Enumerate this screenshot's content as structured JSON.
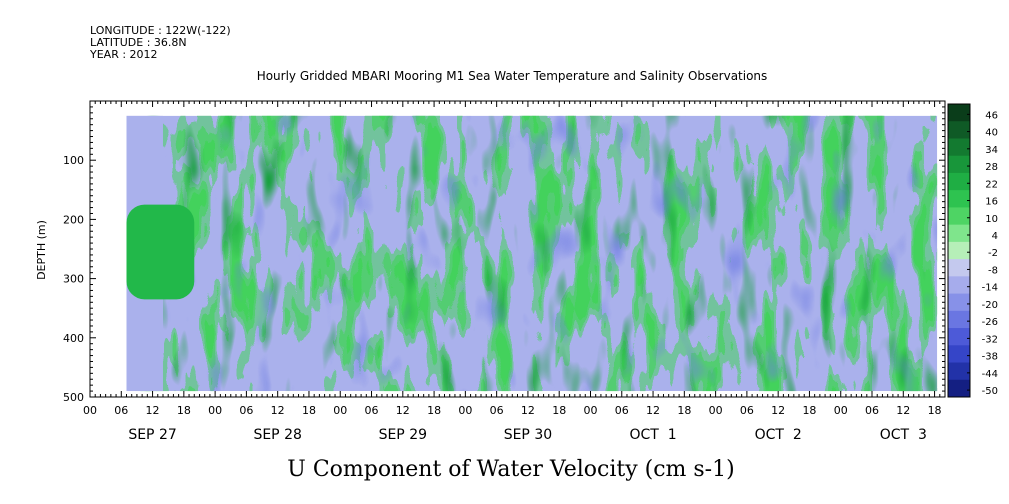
{
  "header": {
    "longitude": "LONGITUDE : 122W(-122)",
    "latitude": "LATITUDE : 36.8N",
    "year": "YEAR : 2012"
  },
  "title": "Hourly Gridded MBARI Mooring M1 Sea Water Temperature and Salinity Observations",
  "xlabel": "U Component of Water Velocity (cm s-1)",
  "ylabel": "DEPTH (m)",
  "chart_data": {
    "type": "heatmap",
    "title": "Hourly Gridded MBARI Mooring M1 Sea Water Temperature and Salinity Observations",
    "xlabel": "U Component of Water Velocity (cm s-1)",
    "ylabel": "DEPTH (m)",
    "x_range_hours": [
      0,
      164
    ],
    "y_range_m": [
      0,
      500
    ],
    "y_reversed": true,
    "data_depth_range_m": [
      25,
      490
    ],
    "data_start_hour": 7,
    "y_ticks": [
      "100",
      "200",
      "300",
      "400",
      "500"
    ],
    "x_tick_labels": [
      "00",
      "06",
      "12",
      "18",
      "00",
      "06",
      "12",
      "18",
      "00",
      "06",
      "12",
      "18",
      "00",
      "06",
      "12",
      "18",
      "00",
      "06",
      "12",
      "18",
      "00",
      "06",
      "12",
      "18",
      "00",
      "06",
      "12",
      "18"
    ],
    "day_labels": [
      "SEP 27",
      "SEP 28",
      "SEP 29",
      "SEP 30",
      "OCT  1",
      "OCT  2",
      "OCT  3"
    ],
    "colorbar": {
      "labels": [
        "46",
        "40",
        "34",
        "28",
        "22",
        "16",
        "10",
        "4",
        "-2",
        "-8",
        "-14",
        "-20",
        "-26",
        "-32",
        "-38",
        "-44",
        "-50"
      ],
      "colors": [
        "#0a3d1a",
        "#0f5a26",
        "#137a30",
        "#18963a",
        "#1fae44",
        "#2ec350",
        "#4ed464",
        "#7fe58c",
        "#b6efb8",
        "#c4c9ee",
        "#a6acec",
        "#8791e8",
        "#6a76e2",
        "#4d5ad8",
        "#3545c8",
        "#2232a8",
        "#141f82"
      ]
    }
  }
}
